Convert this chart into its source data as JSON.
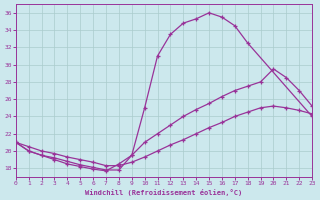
{
  "xlabel": "Windchill (Refroidissement éolien,°C)",
  "xlim": [
    0,
    23
  ],
  "ylim": [
    17,
    37
  ],
  "yticks": [
    18,
    20,
    22,
    24,
    26,
    28,
    30,
    32,
    34,
    36
  ],
  "xticks": [
    0,
    1,
    2,
    3,
    4,
    5,
    6,
    7,
    8,
    9,
    10,
    11,
    12,
    13,
    14,
    15,
    16,
    17,
    18,
    19,
    20,
    21,
    22,
    23
  ],
  "bg_color": "#cce8ed",
  "grid_color": "#aacccc",
  "line_color": "#993399",
  "curve1_x": [
    0,
    1,
    2,
    3,
    4,
    5,
    6,
    7,
    8,
    9,
    10,
    11,
    12,
    13,
    14,
    15,
    16,
    17,
    18,
    23
  ],
  "curve1_y": [
    21,
    20,
    19.5,
    19.2,
    18.8,
    18.4,
    18.1,
    17.8,
    17.8,
    19.5,
    25.0,
    31.0,
    33.5,
    34.8,
    35.3,
    36.0,
    35.5,
    34.5,
    32.5,
    24.0
  ],
  "curve2_x": [
    0,
    1,
    2,
    3,
    4,
    5,
    6,
    7,
    8,
    9,
    10,
    11,
    12,
    13,
    14,
    15,
    16,
    17,
    18,
    19,
    20,
    21,
    22,
    23
  ],
  "curve2_y": [
    21,
    20.5,
    20.0,
    19.7,
    19.3,
    19.0,
    18.7,
    18.3,
    18.3,
    18.7,
    19.3,
    20.0,
    20.7,
    21.3,
    22.0,
    22.7,
    23.3,
    24.0,
    24.5,
    25.0,
    25.2,
    25.0,
    24.7,
    24.3
  ],
  "curve3_x": [
    0,
    1,
    2,
    3,
    4,
    5,
    6,
    7,
    8,
    9,
    10,
    11,
    12,
    13,
    14,
    15,
    16,
    17,
    18,
    19,
    20,
    21,
    22,
    23
  ],
  "curve3_y": [
    21,
    20.0,
    19.5,
    19.0,
    18.5,
    18.2,
    17.9,
    17.7,
    18.5,
    19.5,
    21.0,
    22.0,
    23.0,
    24.0,
    24.8,
    25.5,
    26.3,
    27.0,
    27.5,
    28.0,
    29.5,
    28.5,
    27.0,
    25.2
  ]
}
